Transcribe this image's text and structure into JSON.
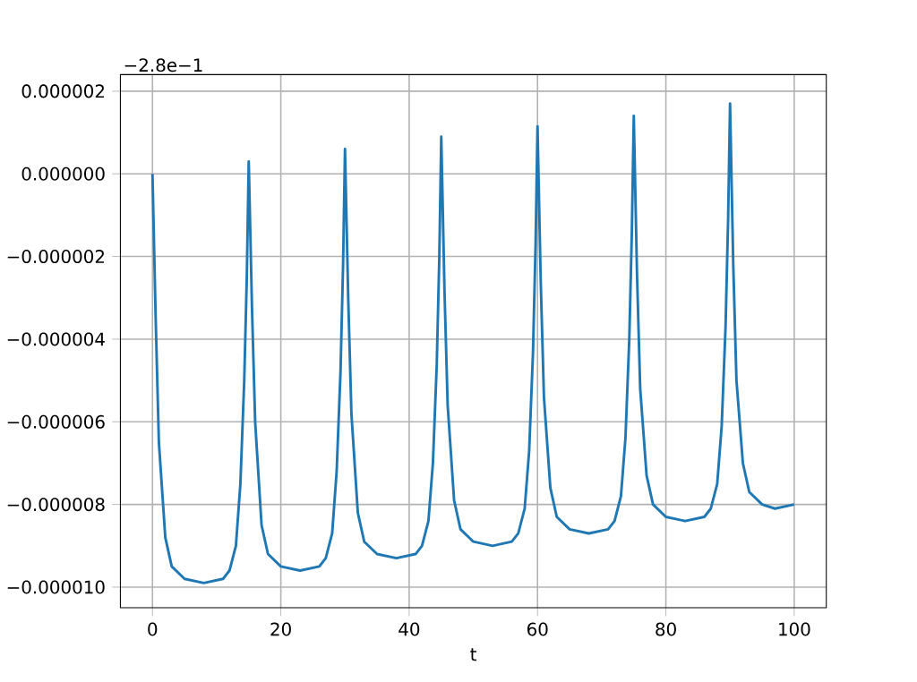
{
  "chart_data": {
    "type": "line",
    "xlabel": "t",
    "annotations": [
      "−2.8e−1"
    ],
    "x": [
      0,
      0.5,
      1,
      2,
      3,
      5,
      8,
      11,
      12,
      13,
      13.7,
      14.3,
      14.7,
      15,
      15.5,
      16,
      17,
      18,
      20,
      23,
      26,
      27,
      28,
      28.7,
      29.3,
      29.7,
      30,
      30.5,
      31,
      32,
      33,
      35,
      38,
      41,
      42,
      43,
      43.7,
      44.3,
      44.7,
      45,
      45.5,
      46,
      47,
      48,
      50,
      53,
      56,
      57,
      58,
      58.7,
      59.3,
      59.7,
      60,
      60.5,
      61,
      62,
      63,
      65,
      68,
      71,
      72,
      73,
      73.7,
      74.3,
      74.7,
      75,
      75.5,
      76,
      77,
      78,
      80,
      83,
      86,
      87,
      88,
      88.7,
      89.3,
      89.7,
      90,
      90.5,
      91,
      92,
      93,
      95,
      97,
      100
    ],
    "series": [
      {
        "color": "#1f77b4",
        "values": [
          0,
          -3.5e-06,
          -6.5e-06,
          -8.8e-06,
          -9.5e-06,
          -9.8e-06,
          -9.9e-06,
          -9.8e-06,
          -9.6e-06,
          -9e-06,
          -7.5e-06,
          -5e-06,
          -2.5e-06,
          3e-07,
          -3.2e-06,
          -6e-06,
          -8.5e-06,
          -9.2e-06,
          -9.5e-06,
          -9.6e-06,
          -9.5e-06,
          -9.3e-06,
          -8.7e-06,
          -7.2e-06,
          -4.8e-06,
          -2.2e-06,
          6e-07,
          -3e-06,
          -5.8e-06,
          -8.2e-06,
          -8.9e-06,
          -9.2e-06,
          -9.3e-06,
          -9.2e-06,
          -9e-06,
          -8.4e-06,
          -7e-06,
          -4.6e-06,
          -2e-06,
          9e-07,
          -2.8e-06,
          -5.6e-06,
          -7.9e-06,
          -8.6e-06,
          -8.9e-06,
          -9e-06,
          -8.9e-06,
          -8.7e-06,
          -8.1e-06,
          -6.7e-06,
          -4.3e-06,
          -1.7e-06,
          1.15e-06,
          -2.6e-06,
          -5.4e-06,
          -7.6e-06,
          -8.3e-06,
          -8.6e-06,
          -8.7e-06,
          -8.6e-06,
          -8.4e-06,
          -7.8e-06,
          -6.4e-06,
          -4e-06,
          -1.4e-06,
          1.4e-06,
          -2.4e-06,
          -5.2e-06,
          -7.3e-06,
          -8e-06,
          -8.3e-06,
          -8.4e-06,
          -8.3e-06,
          -8.1e-06,
          -7.5e-06,
          -6.1e-06,
          -3.7e-06,
          -1.1e-06,
          1.7e-06,
          -2.2e-06,
          -5e-06,
          -7e-06,
          -7.7e-06,
          -8e-06,
          -8.1e-06,
          -8e-06
        ]
      }
    ],
    "xlim": [
      -5,
      105
    ],
    "ylim": [
      -1.05e-05,
      2.4e-06
    ],
    "xticks": [
      0,
      20,
      40,
      60,
      80,
      100
    ],
    "yticks": [
      {
        "value": 2e-06,
        "label": "0.000002"
      },
      {
        "value": 0,
        "label": "0.000000"
      },
      {
        "value": -2e-06,
        "label": "−0.000002"
      },
      {
        "value": -4e-06,
        "label": "−0.000004"
      },
      {
        "value": -6e-06,
        "label": "−0.000006"
      },
      {
        "value": -8e-06,
        "label": "−0.000008"
      },
      {
        "value": -1e-05,
        "label": "−0.000010"
      }
    ],
    "grid": true,
    "marker": "none",
    "line_style": "solid"
  }
}
